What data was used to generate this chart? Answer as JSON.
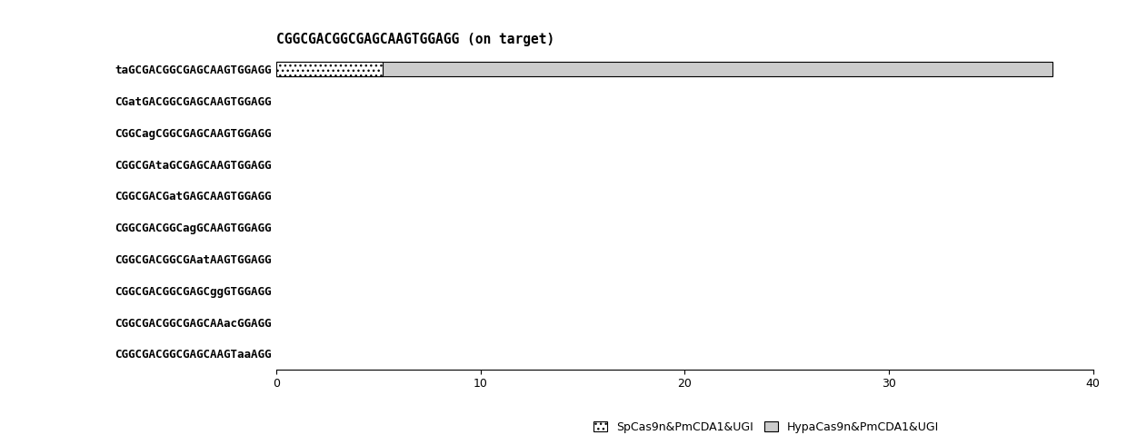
{
  "title": "CGGCGACGGCGAGCAAGTGGAGG (on target)",
  "categories": [
    "taGCGACGGCGAGCAAGTGGAGG",
    "CGatGACGGCGAGCAAGTGGAGG",
    "CGGCagCGGCGAGCAAGTGGAGG",
    "CGGCGAtaGCGAGCAAGTGGAGG",
    "CGGCGACGatGAGCAAGTGGAGG",
    "CGGCGACGGCagGCAAGTGGAGG",
    "CGGCGACGGCGAatAAGTGGAGG",
    "CGGCGACGGCGAGCggGTGGAGG",
    "CGGCGACGGCGAGCAAacGGAGG",
    "CGGCGACGGCGAGCAAGTaaAGG"
  ],
  "sp_values": [
    5.2,
    0,
    0,
    0,
    0,
    0,
    0,
    0,
    0,
    0
  ],
  "hypa_values": [
    38.0,
    0,
    0,
    0,
    0,
    0,
    0,
    0,
    0,
    0
  ],
  "xlim": [
    0,
    40
  ],
  "xticks": [
    0,
    10,
    20,
    30,
    40
  ],
  "sp_label": "SpCas9n&PmCDA1&UGI",
  "hypa_label": "HypaCas9n&PmCDA1&UGI",
  "bar_height": 0.45,
  "fontsize_title": 10.5,
  "fontsize_tick": 9,
  "fontsize_legend": 9
}
